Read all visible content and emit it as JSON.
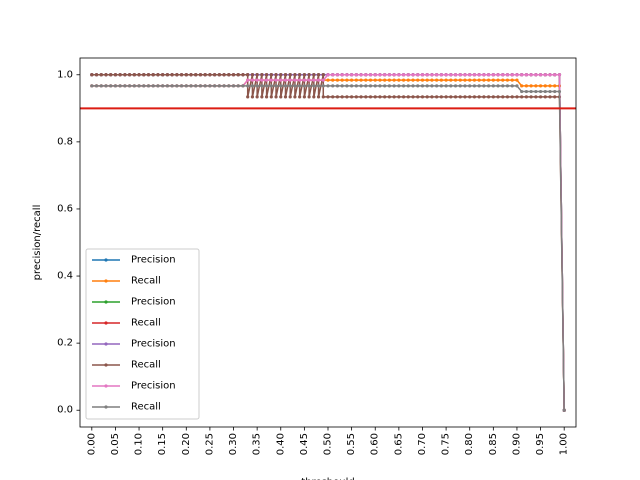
{
  "chart_data": {
    "type": "line",
    "title": "",
    "xlabel": "threshould",
    "ylabel": "precision/recall",
    "xlim": [
      -0.025,
      1.025
    ],
    "ylim": [
      -0.05,
      1.05
    ],
    "x_ticks": [
      "0.00",
      "0.05",
      "0.10",
      "0.15",
      "0.20",
      "0.25",
      "0.30",
      "0.35",
      "0.40",
      "0.45",
      "0.50",
      "0.55",
      "0.60",
      "0.65",
      "0.70",
      "0.75",
      "0.80",
      "0.85",
      "0.90",
      "0.95",
      "1.00"
    ],
    "y_ticks": [
      "0.0",
      "0.2",
      "0.4",
      "0.6",
      "0.8",
      "1.0"
    ],
    "x_step": 0.01,
    "reference_line": {
      "y": 0.9,
      "color": "#dc1c13"
    },
    "grid": false,
    "legend_position": "lower-left",
    "series": [
      {
        "name": "Precision",
        "color": "#1f77b4",
        "segments": [
          [
            0.0,
            0.99,
            1.0
          ]
        ],
        "end": [
          1.0,
          0.0
        ]
      },
      {
        "name": "Recall",
        "color": "#ff7f0e",
        "segments": [
          [
            0.0,
            0.32,
            0.967
          ],
          [
            0.33,
            0.49,
            0.984
          ],
          [
            0.5,
            0.9,
            0.984
          ],
          [
            0.91,
            0.99,
            0.967
          ]
        ],
        "end": [
          1.0,
          0.0
        ]
      },
      {
        "name": "Precision",
        "color": "#2ca02c",
        "segments": [
          [
            0.0,
            0.99,
            1.0
          ]
        ],
        "end": [
          1.0,
          0.0
        ]
      },
      {
        "name": "Recall",
        "color": "#d62728",
        "segments": [
          [
            0.0,
            0.49,
            1.0
          ],
          [
            0.5,
            0.99,
            1.0
          ]
        ],
        "end": [
          1.0,
          0.0
        ]
      },
      {
        "name": "Precision",
        "color": "#9467bd",
        "segments": [
          [
            0.0,
            0.99,
            1.0
          ]
        ],
        "end": [
          1.0,
          0.0
        ]
      },
      {
        "name": "Recall",
        "color": "#8c564b",
        "segments": [
          [
            0.0,
            0.49,
            1.0
          ],
          [
            0.33,
            0.99,
            0.934
          ]
        ],
        "end": [
          1.0,
          0.0
        ]
      },
      {
        "name": "Precision",
        "color": "#e377c2",
        "segments": [
          [
            0.0,
            0.32,
            0.967
          ],
          [
            0.33,
            0.49,
            0.984
          ],
          [
            0.5,
            0.99,
            1.0
          ]
        ],
        "end": [
          1.0,
          0.0
        ]
      },
      {
        "name": "Recall",
        "color": "#7f7f7f",
        "segments": [
          [
            0.0,
            0.9,
            0.967
          ],
          [
            0.91,
            0.99,
            0.95
          ]
        ],
        "end": [
          1.0,
          0.0
        ]
      }
    ]
  }
}
